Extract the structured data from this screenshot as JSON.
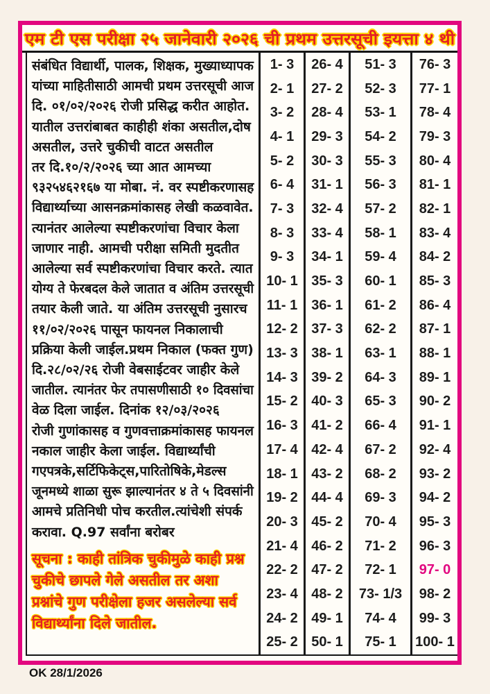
{
  "page": {
    "title": "एम टी एस परीक्षा २५ जानेवारी २०२६ ची प्रथम उत्तरसूची इयत्ता ४ थी",
    "footer_note": "OK 28/1/2026"
  },
  "colors": {
    "border_magenta": "#e2077f",
    "headline_red": "#e41f25",
    "outline_yellow": "#ffd500",
    "ink_black": "#151515",
    "highlight_magenta": "#e2077f"
  },
  "body_text": {
    "lines": [
      {
        "text": "संबंधित विद्यार्थी, पालक, शिक्षक, मुख्याध्यापक"
      },
      {
        "text": "यांच्या माहितीसाठी आमची प्रथम उत्तरसूची आज"
      },
      {
        "text": "दि. ०१/०२/२०२६ रोजी प्रसिद्ध करीत आहोत."
      },
      {
        "text": "यातील उत्तरांबाबत काहीही शंका असतील,दोष"
      },
      {
        "text": "असतील, उत्तरे चुकीची वाटत असतील"
      },
      {
        "text": "तर दि.१०/२/२०२६ च्या आत आमच्या"
      },
      {
        "text": "९३२५४६२१६७ या मोबा. नं. वर स्पष्टीकरणासह"
      },
      {
        "text": "विद्यार्थ्याच्या आसनक्रमांकासह लेखी कळवावेत."
      },
      {
        "text": "त्यानंतर आलेल्या स्पष्टीकरणांचा विचार केला"
      },
      {
        "text": "जाणार नाही. आमची परीक्षा समिती मुदतीत"
      },
      {
        "text": "आलेल्या सर्व स्पष्टीकरणांचा विचार करते. त्यात"
      },
      {
        "text": "योग्य ते फेरबदल केले जातात व अंतिम उत्तरसूची"
      },
      {
        "text": "तयार केली जाते. या अंतिम उत्तरसूची नुसारच"
      },
      {
        "text": "११/०२/२०२६ पासून फायनल निकालाची"
      },
      {
        "text": "प्रक्रिया केली जाईल.प्रथम निकाल (फक्त गुण)"
      },
      {
        "text": "दि.२८/०२/२६ रोजी वेबसाईटवर जाहीर केले"
      },
      {
        "text": "जातील. त्यानंतर फेर तपासणीसाठी १० दिवसांचा"
      },
      {
        "text": "वेळ दिला जाईल. दिनांक १२/०३/२०२६"
      },
      {
        "text": "रोजी गुणांकासह व गुणवत्ताक्रमांकासह फायनल"
      },
      {
        "text": "नकाल जाहीर केला जाईल. विद्यार्थ्यांची"
      },
      {
        "text": "गएपत्रके,सर्टिफिकेट्स,पारितोषिके,मेडल्स"
      },
      {
        "text": "जूनमध्ये शाळा सुरू झाल्यानंतर ४ ते ५ दिवसांनी"
      },
      {
        "text": "आमचे प्रतिनिधी पोच करतील.त्यांचेशी संपर्क"
      },
      {
        "text": "करावा. Q.97 सर्वांना बरोबर",
        "fill": false
      }
    ]
  },
  "notice": {
    "lines": [
      {
        "text": "सूचना : काही तांत्रिक चुकीमुळे काही प्रश्न"
      },
      {
        "text": "चुकीचे छापले गेले असतील तर अशा"
      },
      {
        "text": "प्रश्नांचे गुण परीक्षेला हजर असलेल्या सर्व"
      },
      {
        "text": "विद्यार्थ्यांना दिले जातील.",
        "fill": false
      }
    ]
  },
  "answer_key": {
    "highlight_label": "97- 0",
    "columns": [
      [
        "1- 3",
        "2- 1",
        "3- 2",
        "4- 1",
        "5- 2",
        "6- 4",
        "7- 3",
        "8- 3",
        "9- 3",
        "10- 1",
        "11- 1",
        "12- 2",
        "13- 3",
        "14- 3",
        "15- 2",
        "16- 3",
        "17- 4",
        "18- 1",
        "19- 2",
        "20- 3",
        "21- 4",
        "22- 2",
        "23- 4",
        "24- 2",
        "25- 2"
      ],
      [
        "26- 4",
        "27- 2",
        "28- 4",
        "29- 3",
        "30- 3",
        "31- 1",
        "32- 4",
        "33- 4",
        "34- 1",
        "35- 3",
        "36- 1",
        "37- 3",
        "38- 1",
        "39- 2",
        "40- 3",
        "41- 2",
        "42- 4",
        "43- 2",
        "44- 4",
        "45- 2",
        "46- 2",
        "47- 2",
        "48- 2",
        "49- 1",
        "50- 1"
      ],
      [
        "51- 3",
        "52- 3",
        "53- 1",
        "54- 2",
        "55- 3",
        "56- 3",
        "57- 2",
        "58- 1",
        "59- 4",
        "60- 1",
        "61- 2",
        "62- 2",
        "63- 1",
        "64- 3",
        "65- 3",
        "66- 4",
        "67- 2",
        "68- 2",
        "69- 3",
        "70- 4",
        "71- 2",
        "72- 1",
        "73- 1/3",
        "74- 4",
        "75- 1"
      ],
      [
        "76- 3",
        "77- 1",
        "78- 4",
        "79- 3",
        "80- 4",
        "81- 1",
        "82- 1",
        "83- 4",
        "84- 2",
        "85- 3",
        "86- 4",
        "87- 1",
        "88- 1",
        "89- 1",
        "90- 2",
        "91- 1",
        "92- 4",
        "93- 2",
        "94- 2",
        "95- 3",
        "96- 3",
        "97- 0",
        "98- 2",
        "99- 3",
        "100- 1"
      ]
    ]
  }
}
